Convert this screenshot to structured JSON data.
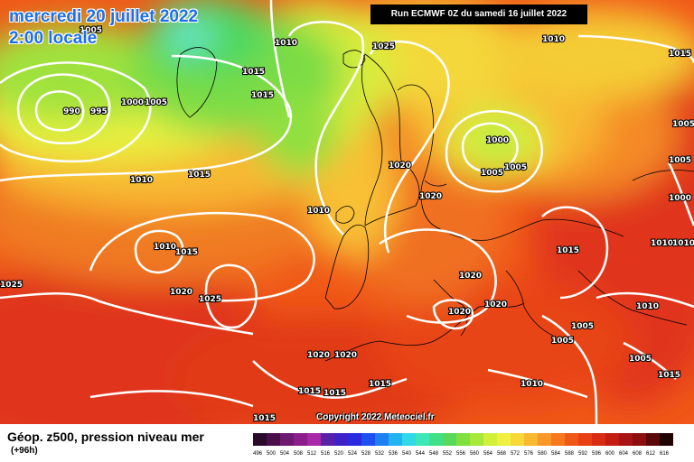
{
  "header": {
    "date_label": "mercredi 20 juillet 2022",
    "time_label": "2:00 locale",
    "run_label": "Run ECMWF 0Z du samedi 16 juillet 2022"
  },
  "copyright": "Copyright 2022 Meteociel.fr",
  "footer": {
    "title": "Géop. z500, pression niveau mer",
    "subtitle": "(+96h)"
  },
  "legend": {
    "values": [
      "496",
      "500",
      "504",
      "508",
      "512",
      "516",
      "520",
      "524",
      "528",
      "532",
      "536",
      "540",
      "544",
      "548",
      "552",
      "556",
      "560",
      "564",
      "568",
      "572",
      "576",
      "580",
      "584",
      "588",
      "592",
      "596",
      "600",
      "604",
      "608",
      "612",
      "616"
    ],
    "colors": [
      "#2a0a2a",
      "#4a0f4a",
      "#6e1a70",
      "#8c1e8c",
      "#a828a8",
      "#5a20a8",
      "#3e22c8",
      "#2a2ae0",
      "#1e50f0",
      "#1e80f0",
      "#22b4f0",
      "#30d8e8",
      "#3ce8b8",
      "#40e088",
      "#5ad85a",
      "#80e040",
      "#a8e83a",
      "#d0f03a",
      "#f0f040",
      "#f8d838",
      "#f8b830",
      "#f89828",
      "#f87820",
      "#f05818",
      "#e84014",
      "#d82c14",
      "#c41e14",
      "#a81414",
      "#8c0e0e",
      "#5a0808",
      "#200404"
    ]
  },
  "pressure_labels": [
    "990",
    "995",
    "1000",
    "1005",
    "1005",
    "1010",
    "1010",
    "1015",
    "1015",
    "1015",
    "1025",
    "1010",
    "1015",
    "1010",
    "1010",
    "1015",
    "1020",
    "1025",
    "1025",
    "1020",
    "1020",
    "1000",
    "1005",
    "1005",
    "1020",
    "1020",
    "1020",
    "1015",
    "1010",
    "1010",
    "1005",
    "1005",
    "1000",
    "1005",
    "1005",
    "1005",
    "1020",
    "1020",
    "1015",
    "1015",
    "1015",
    "1015",
    "1010",
    "1015",
    "1010"
  ],
  "colors": {
    "title_blue": "#1e6fe8",
    "contour": "#ffffff",
    "coastline": "#000000"
  }
}
